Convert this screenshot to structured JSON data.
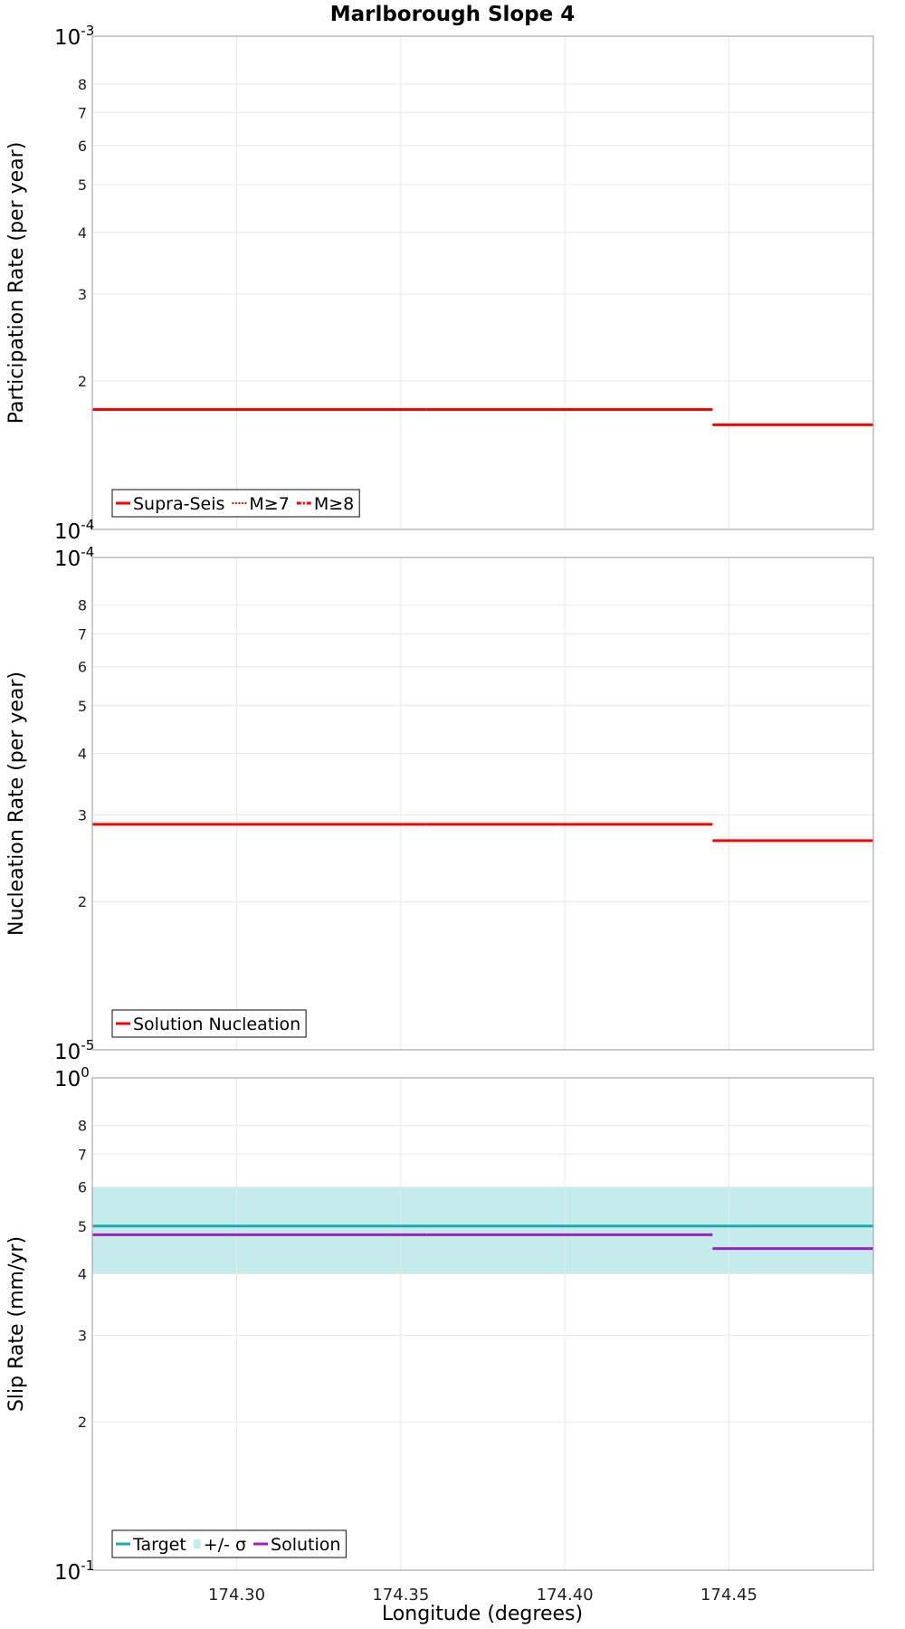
{
  "chart_data": {
    "type": "line",
    "title": "Marlborough Slope 4",
    "xlabel": "Longitude (degrees)",
    "xlim": [
      174.256,
      174.494
    ],
    "xticks": [
      174.3,
      174.35,
      174.4,
      174.45
    ],
    "xtick_labels": [
      "174.30",
      "174.35",
      "174.40",
      "174.45"
    ],
    "panels": [
      {
        "ylabel": "Participation Rate (per year)",
        "yscale": "log",
        "ylim": [
          0.0001,
          0.001
        ],
        "decade_labels": [
          {
            "value": 0.001,
            "base": "10",
            "exp": "-3"
          },
          {
            "value": 0.0001,
            "base": "10",
            "exp": "-4"
          }
        ],
        "minor_ticks": [
          {
            "value": 0.0002,
            "label": "2"
          },
          {
            "value": 0.0003,
            "label": "3"
          },
          {
            "value": 0.0004,
            "label": "4"
          },
          {
            "value": 0.0005,
            "label": "5"
          },
          {
            "value": 0.0006,
            "label": "6"
          },
          {
            "value": 0.0007,
            "label": "7"
          },
          {
            "value": 0.0008,
            "label": "8"
          }
        ],
        "series": [
          {
            "name": "Supra-Seis",
            "color": "#ff0000",
            "style": "solid",
            "segments": [
              {
                "x": [
                  174.256,
                  174.358
                ],
                "y": 0.000175
              },
              {
                "x": [
                  174.358,
                  174.445
                ],
                "y": 0.000175
              },
              {
                "x": [
                  174.445,
                  174.494
                ],
                "y": 0.000163
              }
            ]
          },
          {
            "name": "M≥7",
            "color": "#ff0000",
            "style": "dotted",
            "segments": [
              {
                "x": [
                  174.256,
                  174.358
                ],
                "y": 0.000175
              },
              {
                "x": [
                  174.358,
                  174.445
                ],
                "y": 0.000175
              }
            ]
          },
          {
            "name": "M≥8",
            "color": "#ff0000",
            "style": "dashdot",
            "segments": []
          }
        ],
        "legend": [
          {
            "label": "Supra-Seis",
            "color": "#ff0000",
            "style": "solid"
          },
          {
            "label": "M≥7",
            "color": "#ff0000",
            "style": "dotted"
          },
          {
            "label": "M≥8",
            "color": "#ff0000",
            "style": "dashdot"
          }
        ]
      },
      {
        "ylabel": "Nucleation Rate (per year)",
        "yscale": "log",
        "ylim": [
          1e-05,
          0.0001
        ],
        "decade_labels": [
          {
            "value": 0.0001,
            "base": "10",
            "exp": "-4"
          },
          {
            "value": 1e-05,
            "base": "10",
            "exp": "-5"
          }
        ],
        "minor_ticks": [
          {
            "value": 2e-05,
            "label": "2"
          },
          {
            "value": 3e-05,
            "label": "3"
          },
          {
            "value": 4e-05,
            "label": "4"
          },
          {
            "value": 5e-05,
            "label": "5"
          },
          {
            "value": 6e-05,
            "label": "6"
          },
          {
            "value": 7e-05,
            "label": "7"
          },
          {
            "value": 8e-05,
            "label": "8"
          }
        ],
        "series": [
          {
            "name": "Solution Nucleation",
            "color": "#ff0000",
            "style": "solid",
            "segments": [
              {
                "x": [
                  174.256,
                  174.358
                ],
                "y": 2.87e-05
              },
              {
                "x": [
                  174.358,
                  174.445
                ],
                "y": 2.87e-05
              },
              {
                "x": [
                  174.445,
                  174.494
                ],
                "y": 2.66e-05
              }
            ]
          }
        ],
        "legend": [
          {
            "label": "Solution Nucleation",
            "color": "#ff0000",
            "style": "solid"
          }
        ]
      },
      {
        "ylabel": "Slip Rate (mm/yr)",
        "yscale": "log",
        "ylim": [
          0.1,
          1
        ],
        "decade_labels": [
          {
            "value": 1,
            "base": "10",
            "exp": "0"
          },
          {
            "value": 0.1,
            "base": "10",
            "exp": "-1"
          }
        ],
        "minor_ticks": [
          {
            "value": 0.2,
            "label": "2"
          },
          {
            "value": 0.3,
            "label": "3"
          },
          {
            "value": 0.4,
            "label": "4"
          },
          {
            "value": 0.5,
            "label": "5"
          },
          {
            "value": 0.6,
            "label": "6"
          },
          {
            "value": 0.7,
            "label": "7"
          },
          {
            "value": 0.8,
            "label": "8"
          }
        ],
        "band": {
          "name": "+/- σ",
          "color": "#c4ecec",
          "y0": 0.4,
          "y1": 0.6,
          "x": [
            174.256,
            174.494
          ]
        },
        "series": [
          {
            "name": "Target",
            "color": "#1aadb0",
            "style": "solid",
            "segments": [
              {
                "x": [
                  174.256,
                  174.494
                ],
                "y": 0.5
              }
            ]
          },
          {
            "name": "Solution",
            "color": "#a020c8",
            "style": "solid",
            "segments": [
              {
                "x": [
                  174.256,
                  174.358
                ],
                "y": 0.48
              },
              {
                "x": [
                  174.358,
                  174.445
                ],
                "y": 0.48
              },
              {
                "x": [
                  174.445,
                  174.494
                ],
                "y": 0.45
              }
            ]
          }
        ],
        "legend": [
          {
            "label": "Target",
            "color": "#1aadb0",
            "style": "solid"
          },
          {
            "label": "+/- σ",
            "color": "#c4ecec",
            "style": "band"
          },
          {
            "label": "Solution",
            "color": "#a020c8",
            "style": "solid"
          }
        ]
      }
    ]
  }
}
